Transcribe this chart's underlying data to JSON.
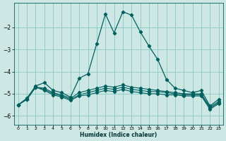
{
  "xlabel": "Humidex (Indice chaleur)",
  "background_color": "#cde8e4",
  "grid_color": "#88c8c0",
  "line_color": "#006060",
  "xlim": [
    -0.5,
    23.5
  ],
  "ylim": [
    -6.4,
    -0.9
  ],
  "yticks": [
    -6,
    -5,
    -4,
    -3,
    -2
  ],
  "xticks": [
    0,
    1,
    2,
    3,
    4,
    5,
    6,
    7,
    8,
    9,
    10,
    11,
    12,
    13,
    14,
    15,
    16,
    17,
    18,
    19,
    20,
    21,
    22,
    23
  ],
  "curve_main_x": [
    0,
    1,
    2,
    3,
    4,
    5,
    6,
    7,
    8,
    9,
    10,
    11,
    12,
    13,
    14,
    15,
    16,
    17,
    18,
    19,
    20,
    21,
    22,
    23
  ],
  "curve_main_y": [
    -5.5,
    -5.2,
    -4.65,
    -4.5,
    -4.85,
    -4.95,
    -5.15,
    -4.3,
    -4.1,
    -2.75,
    -1.4,
    -2.25,
    -1.3,
    -1.45,
    -2.2,
    -2.85,
    -3.45,
    -4.35,
    -4.75,
    -4.85,
    -4.95,
    -4.85,
    -5.55,
    -5.25
  ],
  "curve_flat1_x": [
    0,
    1,
    2,
    3,
    4,
    5,
    6,
    7,
    8,
    9,
    10,
    11,
    12,
    13,
    14,
    15,
    16,
    17,
    18,
    19,
    20,
    21,
    22,
    23
  ],
  "curve_flat1_y": [
    -5.5,
    -5.25,
    -4.7,
    -4.75,
    -4.95,
    -5.05,
    -5.2,
    -4.95,
    -4.85,
    -4.75,
    -4.65,
    -4.7,
    -4.6,
    -4.7,
    -4.75,
    -4.8,
    -4.85,
    -4.9,
    -4.95,
    -5.0,
    -5.0,
    -5.0,
    -5.6,
    -5.35
  ],
  "curve_flat2_x": [
    0,
    1,
    2,
    3,
    4,
    5,
    6,
    7,
    8,
    9,
    10,
    11,
    12,
    13,
    14,
    15,
    16,
    17,
    18,
    19,
    20,
    21,
    22,
    23
  ],
  "curve_flat2_y": [
    -5.5,
    -5.25,
    -4.7,
    -4.8,
    -5.0,
    -5.1,
    -5.25,
    -5.05,
    -4.95,
    -4.85,
    -4.75,
    -4.8,
    -4.7,
    -4.8,
    -4.85,
    -4.9,
    -4.9,
    -4.95,
    -5.0,
    -5.05,
    -5.05,
    -5.05,
    -5.65,
    -5.4
  ],
  "curve_flat3_x": [
    0,
    1,
    2,
    3,
    4,
    5,
    6,
    7,
    8,
    9,
    10,
    11,
    12,
    13,
    14,
    15,
    16,
    17,
    18,
    19,
    20,
    21,
    22,
    23
  ],
  "curve_flat3_y": [
    -5.5,
    -5.25,
    -4.7,
    -4.85,
    -5.05,
    -5.15,
    -5.3,
    -5.1,
    -5.05,
    -4.95,
    -4.85,
    -4.9,
    -4.8,
    -4.9,
    -4.95,
    -5.0,
    -5.0,
    -5.05,
    -5.05,
    -5.1,
    -5.1,
    -5.1,
    -5.7,
    -5.45
  ]
}
